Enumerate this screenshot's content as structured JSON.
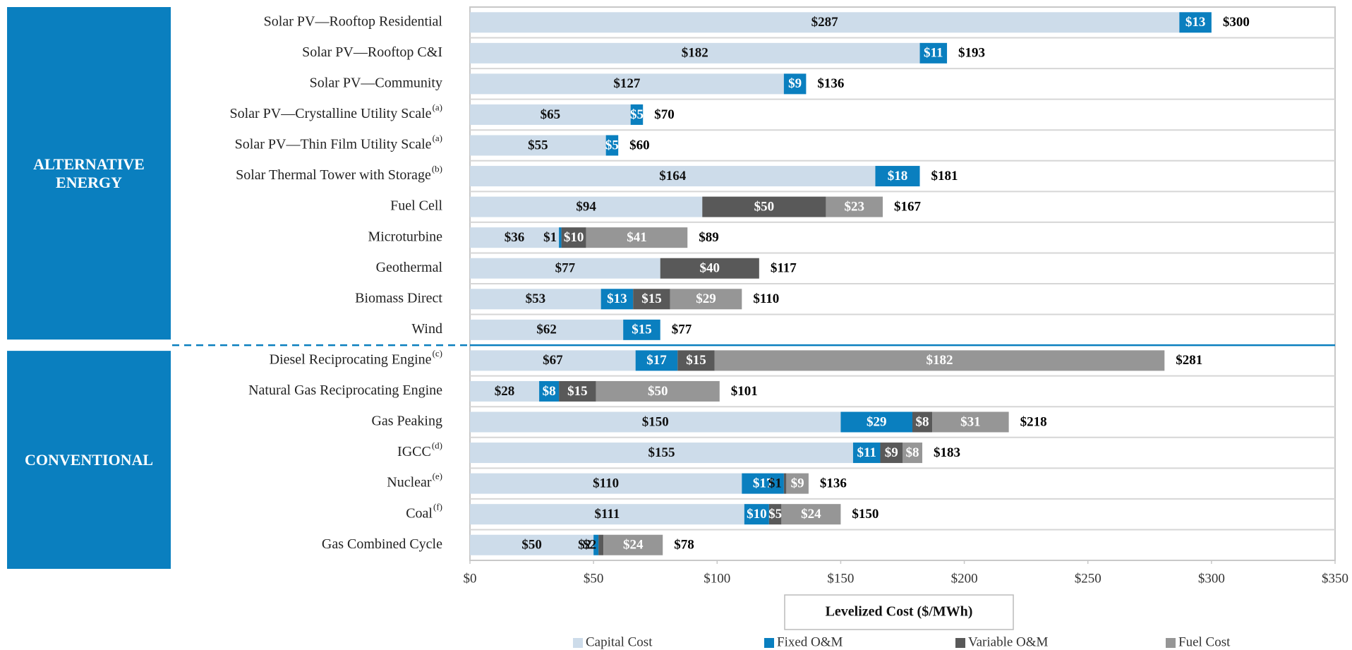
{
  "chart_data": {
    "type": "stacked_bar_horizontal",
    "categories": [
      "Solar PV—Rooftop Residential",
      "Solar PV—Rooftop C&I",
      "Solar PV—Community",
      "Solar PV—Crystalline Utility Scale",
      "Solar PV—Thin Film Utility Scale",
      "Solar Thermal Tower with Storage",
      "Fuel Cell",
      "Microturbine",
      "Geothermal",
      "Biomass Direct",
      "Wind",
      "Diesel Reciprocating Engine",
      "Natural Gas Reciprocating Engine",
      "Gas Peaking",
      "IGCC",
      "Nuclear",
      "Coal",
      "Gas Combined Cycle"
    ],
    "category_notes": [
      null,
      null,
      null,
      "(a)",
      "(a)",
      "(b)",
      null,
      null,
      null,
      null,
      null,
      "(c)",
      null,
      null,
      "(d)",
      "(e)",
      "(f)",
      null
    ],
    "groups": [
      {
        "label": "ALTERNATIVE ENERGY",
        "size": 11
      },
      {
        "label": "CONVENTIONAL",
        "size": 7
      }
    ],
    "series": [
      {
        "name": "Capital Cost",
        "color": "#cddcea",
        "values": [
          287,
          182,
          127,
          65,
          55,
          164,
          94,
          36,
          77,
          53,
          62,
          67,
          28,
          150,
          155,
          110,
          111,
          50
        ],
        "value_labels": [
          "$287",
          "$182",
          "$127",
          "$65",
          "$55",
          "$164",
          "$94",
          "$36",
          "$77",
          "$53",
          "$62",
          "$67",
          "$28",
          "$150",
          "$155",
          "$110",
          "$111",
          "$50"
        ]
      },
      {
        "name": "Fixed O&M",
        "color": "#0a7fbf",
        "values": [
          13,
          11,
          9,
          5,
          5,
          18,
          null,
          1,
          null,
          13,
          15,
          17,
          8,
          29,
          11,
          17,
          10,
          2
        ],
        "value_labels": [
          "$13",
          "$11",
          "$9",
          "$5",
          "$5",
          "$18",
          null,
          "$1",
          null,
          "$13",
          "$15",
          "$17",
          "$8",
          "$29",
          "$11",
          "$17",
          "$10",
          "$2"
        ]
      },
      {
        "name": "Variable O&M",
        "color": "#595959",
        "values": [
          null,
          null,
          null,
          null,
          null,
          null,
          50,
          10,
          40,
          15,
          null,
          15,
          15,
          8,
          9,
          1,
          5,
          2
        ],
        "value_labels": [
          null,
          null,
          null,
          null,
          null,
          null,
          "$50",
          "$10",
          "$40",
          "$15",
          null,
          "$15",
          "$15",
          "$8",
          "$9",
          "$1",
          "$5",
          "$2"
        ]
      },
      {
        "name": "Fuel Cost",
        "color": "#969696",
        "values": [
          null,
          null,
          null,
          null,
          null,
          null,
          23,
          41,
          null,
          29,
          null,
          182,
          50,
          31,
          8,
          9,
          24,
          24
        ],
        "value_labels": [
          null,
          null,
          null,
          null,
          null,
          null,
          "$23",
          "$41",
          null,
          "$29",
          null,
          "$182",
          "$50",
          "$31",
          "$8",
          "$9",
          "$24",
          "$24"
        ]
      }
    ],
    "totals": [
      300,
      193,
      136,
      70,
      60,
      181,
      167,
      89,
      117,
      110,
      77,
      281,
      101,
      218,
      183,
      136,
      150,
      78
    ],
    "total_labels": [
      "$300",
      "$193",
      "$136",
      "$70",
      "$60",
      "$181",
      "$167",
      "$89",
      "$117",
      "$110",
      "$77",
      "$281",
      "$101",
      "$218",
      "$183",
      "$136",
      "$150",
      "$78"
    ],
    "xlim": [
      0,
      350
    ],
    "xticks": [
      {
        "value": 0,
        "label": "$0"
      },
      {
        "value": 50,
        "label": "$50"
      },
      {
        "value": 100,
        "label": "$100"
      },
      {
        "value": 150,
        "label": "$150"
      },
      {
        "value": 200,
        "label": "$200"
      },
      {
        "value": 250,
        "label": "$250"
      },
      {
        "value": 300,
        "label": "$300"
      },
      {
        "value": 350,
        "label": "$350"
      }
    ],
    "xlabel": "Levelized Cost ($/MWh)",
    "legend": "bottom"
  }
}
